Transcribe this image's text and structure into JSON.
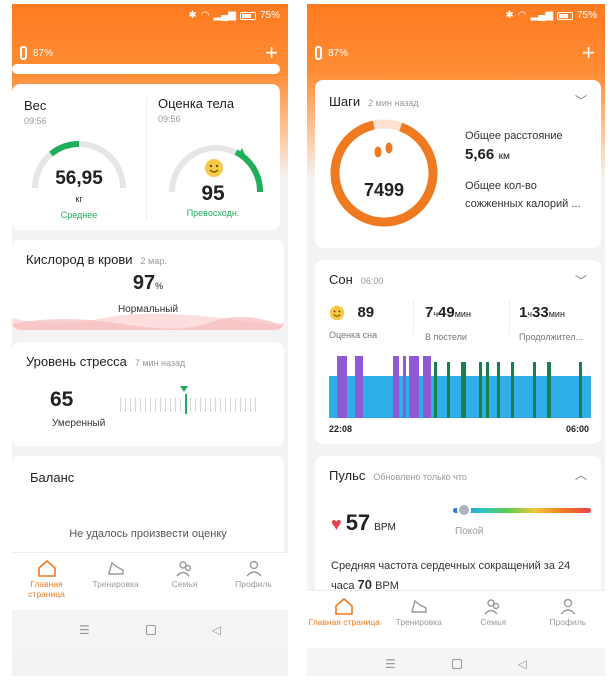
{
  "status": {
    "battery_pct": "75%"
  },
  "left": {
    "band_battery": "87%",
    "weight": {
      "title": "Вес",
      "time": "09:56",
      "value": "56,95",
      "unit": "кг",
      "status": "Среднее"
    },
    "body_score": {
      "title": "Оценка тела",
      "time": "09:56",
      "value": "95",
      "status": "Превосходн."
    },
    "oxygen": {
      "title": "Кислород в крови",
      "time": "2 мар.",
      "value": "97",
      "unit": "%",
      "status": "Нормальный"
    },
    "stress": {
      "title": "Уровень стресса",
      "time": "7 мин назад",
      "value": "65",
      "status": "Умеренный"
    },
    "balance": {
      "title": "Баланс",
      "message": "Не удалось произвести оценку"
    }
  },
  "right": {
    "band_battery": "87%",
    "steps": {
      "title": "Шаги",
      "time": "2 мин назад",
      "value": "7499",
      "distance_label": "Общее расстояние",
      "distance_value": "5,66",
      "distance_unit": "км",
      "calories_label_1": "Общее кол-во",
      "calories_label_2": "сожженных калорий ..."
    },
    "sleep": {
      "title": "Сон",
      "time": "06:00",
      "score": "89",
      "score_label": "Оценка сна",
      "bed_h": "7",
      "bed_h_unit": "ч",
      "bed_m": "49",
      "bed_m_unit": "мин",
      "bed_label": "В постели",
      "dur_h": "1",
      "dur_h_unit": "ч",
      "dur_m": "33",
      "dur_m_unit": "мин",
      "dur_label": "Продолжител...",
      "start": "22:08",
      "end": "06:00"
    },
    "pulse": {
      "title": "Пульс",
      "time": "Обновлено только что",
      "value": "57",
      "unit": "BPM",
      "zone": "Покой",
      "avg_text": "Средняя частота сердечных сокращений за 24 часа",
      "avg_value": "70",
      "avg_unit": "BPM"
    }
  },
  "tabs": [
    {
      "label": "Главная страница",
      "icon": "home-icon"
    },
    {
      "label": "Тренировка",
      "icon": "shoe-icon"
    },
    {
      "label": "Семья",
      "icon": "family-icon"
    },
    {
      "label": "Профиль",
      "icon": "profile-icon"
    }
  ],
  "colors": {
    "accent": "#f07a1f",
    "gauge": "#1fae5a",
    "sleep_deep": "#1b7f4b",
    "sleep_light": "#2eaee6",
    "sleep_rem": "#8f59d6"
  }
}
